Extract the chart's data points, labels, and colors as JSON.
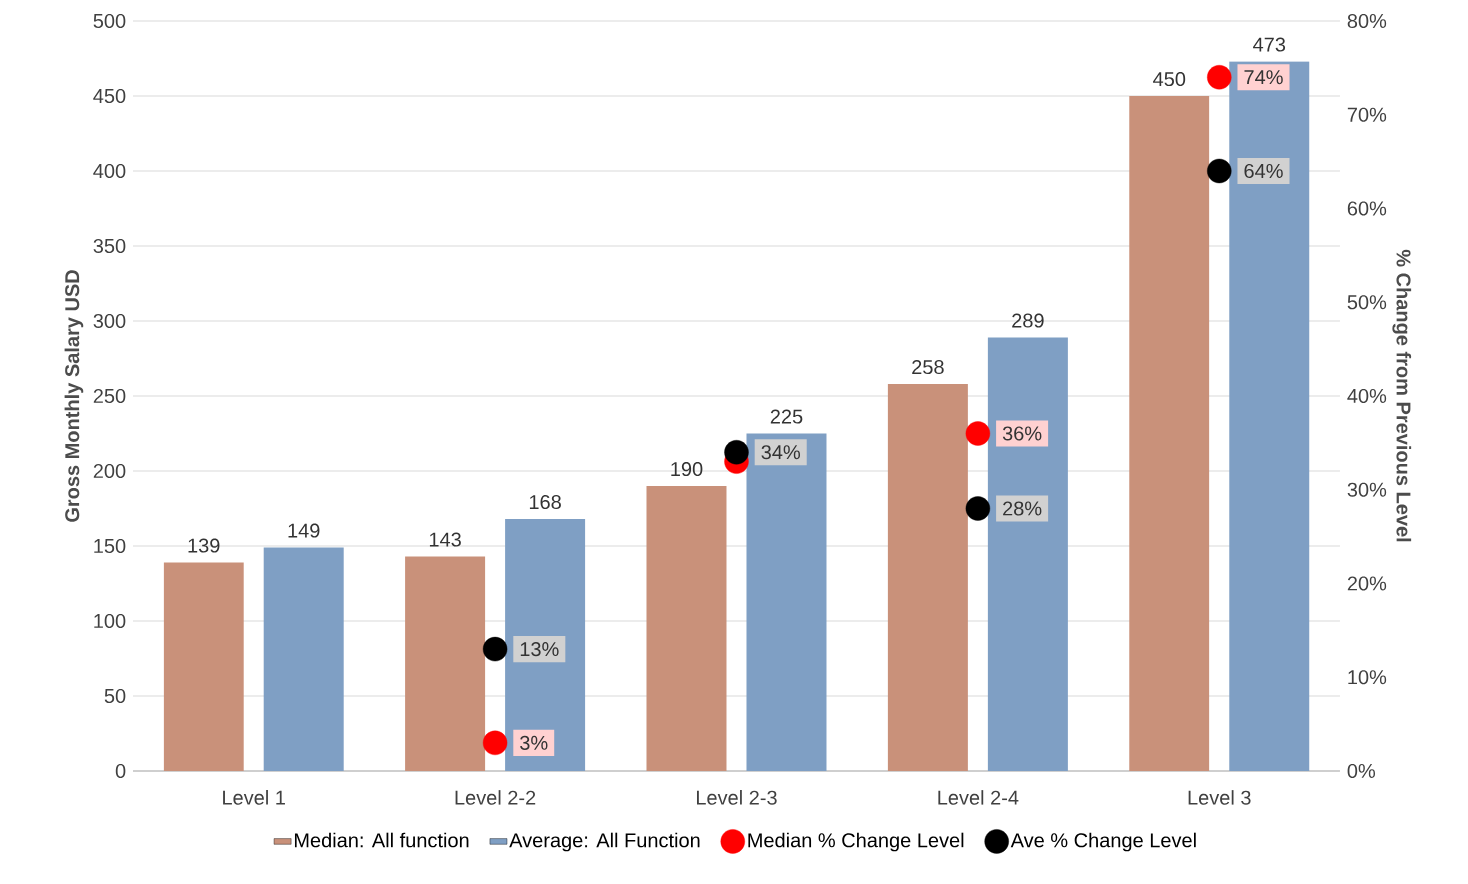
{
  "chart_data": {
    "type": "bar",
    "ylabel": "Gross Monthly Salary USD",
    "y2label": "% Change from Previous Level",
    "categories": [
      "Level 1",
      "Level 2-2",
      "Level 2-3",
      "Level 2-4",
      "Level 3"
    ],
    "series": [
      {
        "name": "Median: All function",
        "color": "#c9917a",
        "values": [
          139,
          143,
          190,
          258,
          450
        ]
      },
      {
        "name": "Average: All Function",
        "color": "#7f9fc4",
        "values": [
          149,
          168,
          225,
          289,
          473
        ]
      },
      {
        "name": "Median % Change Level",
        "type": "scatter",
        "axis": "y2",
        "color": "#ff0000",
        "values": [
          null,
          3,
          33,
          36,
          74
        ],
        "value_labels": [
          null,
          "3%",
          null,
          "36%",
          "74%"
        ]
      },
      {
        "name": "Ave % Change Level",
        "type": "scatter",
        "axis": "y2",
        "color": "#000000",
        "values": [
          null,
          13,
          34,
          28,
          64
        ],
        "value_labels": [
          null,
          "13%",
          "34%",
          "28%",
          "64%"
        ]
      }
    ],
    "data_labels": true,
    "marker": "circle",
    "ylim": [
      0,
      500
    ],
    "yticks": [
      0,
      50,
      100,
      150,
      200,
      250,
      300,
      350,
      400,
      450,
      500
    ],
    "y2lim": [
      0,
      80
    ],
    "y2ticks": [
      {
        "value": 0,
        "label": "0%"
      },
      {
        "value": 10,
        "label": "10%"
      },
      {
        "value": 20,
        "label": "20%"
      },
      {
        "value": 30,
        "label": "30%"
      },
      {
        "value": 40,
        "label": "40%"
      },
      {
        "value": 50,
        "label": "50%"
      },
      {
        "value": 60,
        "label": "60%"
      },
      {
        "value": 70,
        "label": "70%"
      },
      {
        "value": 80,
        "label": "80%"
      }
    ],
    "grid": "y",
    "legend": "bottom"
  }
}
